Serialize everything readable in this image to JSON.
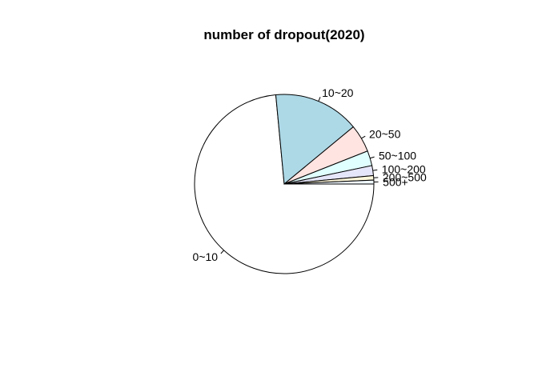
{
  "chart_data": {
    "type": "pie",
    "title": "number of dropout(2020)",
    "clockwise": true,
    "start": "3 o'clock",
    "slices": [
      {
        "label": "0~10",
        "value": 73.5,
        "color": "#FFFFFF"
      },
      {
        "label": "10~20",
        "value": 15.5,
        "color": "#ADD8E6"
      },
      {
        "label": "20~50",
        "value": 5.0,
        "color": "#FFE4E1"
      },
      {
        "label": "50~100",
        "value": 2.7,
        "color": "#E0FFFF"
      },
      {
        "label": "100~200",
        "value": 1.8,
        "color": "#E6E6FA"
      },
      {
        "label": "200~500",
        "value": 0.8,
        "color": "#FFF8DC"
      },
      {
        "label": "500+",
        "value": 0.7,
        "color": "#F0F8FF"
      }
    ]
  }
}
